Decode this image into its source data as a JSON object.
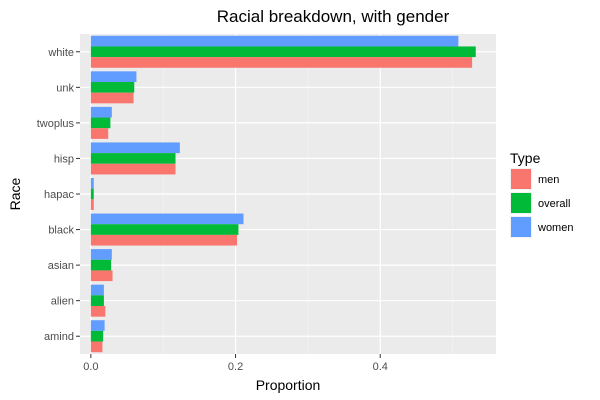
{
  "chart_data": {
    "type": "bar",
    "orientation": "horizontal",
    "title": "Racial breakdown, with gender",
    "xlabel": "Proportion",
    "ylabel": "Race",
    "categories": [
      "white",
      "unk",
      "twoplus",
      "hisp",
      "hapac",
      "black",
      "asian",
      "alien",
      "amind"
    ],
    "series": [
      {
        "name": "men",
        "color": "#F8766D",
        "values": [
          0.527,
          0.059,
          0.024,
          0.117,
          0.004,
          0.202,
          0.03,
          0.02,
          0.016
        ]
      },
      {
        "name": "overall",
        "color": "#00BA38",
        "values": [
          0.532,
          0.06,
          0.027,
          0.117,
          0.004,
          0.204,
          0.028,
          0.018,
          0.017
        ]
      },
      {
        "name": "women",
        "color": "#619CFF",
        "values": [
          0.508,
          0.063,
          0.029,
          0.123,
          0.004,
          0.211,
          0.029,
          0.018,
          0.019
        ]
      }
    ],
    "xlim": [
      -0.015,
      0.56
    ],
    "xticks": [
      0.0,
      0.2,
      0.4
    ],
    "xtick_labels": [
      "0.0",
      "0.2",
      "0.4"
    ],
    "grid": true,
    "legend": {
      "title": "Type",
      "placement": "right"
    }
  }
}
